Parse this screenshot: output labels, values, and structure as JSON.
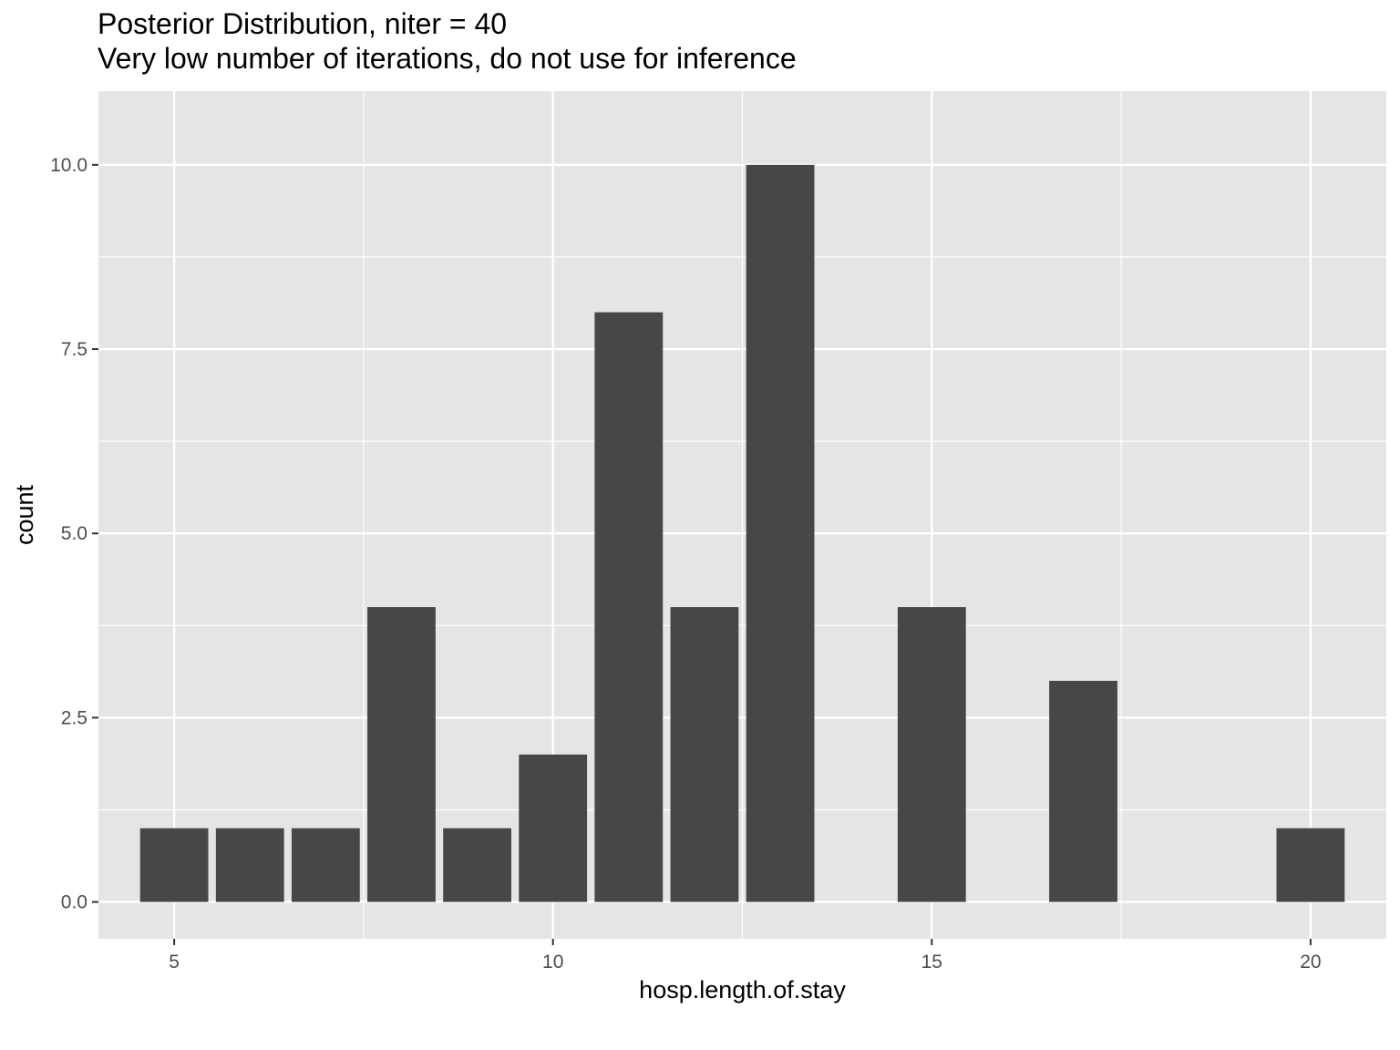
{
  "chart_data": {
    "type": "bar",
    "title": "Posterior Distribution, niter = 40",
    "subtitle": "Very low number of iterations, do not use for inference",
    "xlabel": "hosp.length.of.stay",
    "ylabel": "count",
    "x": [
      5,
      6,
      7,
      8,
      9,
      10,
      11,
      12,
      13,
      15,
      17,
      20
    ],
    "values": [
      1,
      1,
      1,
      4,
      1,
      2,
      8,
      4,
      10,
      4,
      3,
      1
    ],
    "xlim": [
      4,
      21
    ],
    "ylim": [
      -0.5,
      11
    ],
    "x_ticks": [
      5,
      10,
      15,
      20
    ],
    "x_tick_labels": [
      "5",
      "10",
      "15",
      "20"
    ],
    "y_ticks": [
      0,
      2.5,
      5,
      7.5,
      10
    ],
    "y_tick_labels": [
      "0.0",
      "2.5",
      "5.0",
      "7.5",
      "10.0"
    ],
    "grid": true,
    "colors": {
      "panel": "#e5e5e5",
      "grid": "#ffffff",
      "bar": "#474747",
      "tick_text": "#4d4d4d"
    }
  }
}
